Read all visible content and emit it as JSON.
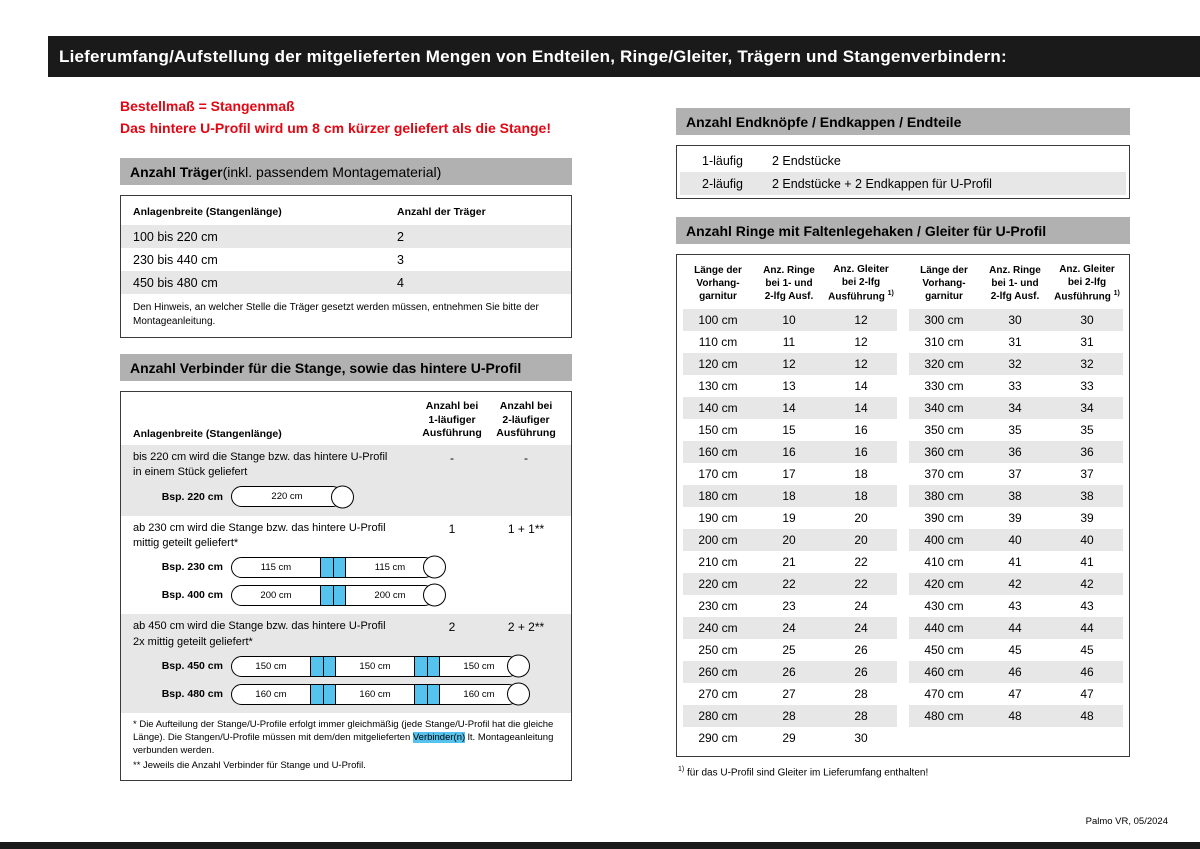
{
  "colors": {
    "bar_black": "#1a1a1a",
    "header_gray": "#b1b1b1",
    "row_gray": "#e7e7e7",
    "accent_red": "#e30613",
    "highlight_blue": "#55c3ee"
  },
  "page": {
    "title_bar": "Lieferumfang/Aufstellung der mitgelieferten Mengen von Endteilen, Ringe/Gleiter, Trägern und Stangenverbindern:",
    "footer": "Palmo VR, 05/2024"
  },
  "left": {
    "notice_line1": "Bestellmaß = Stangenmaß",
    "notice_line2": "Das hintere U-Profil wird um 8 cm kürzer geliefert als die Stange!",
    "traeger": {
      "header_bold": "Anzahl Träger",
      "header_rest": " (inkl. passendem Montagematerial)",
      "col1": "Anlagenbreite (Stangenlänge)",
      "col2": "Anzahl der Träger",
      "rows": [
        {
          "range": "100 bis 220 cm",
          "count": "2"
        },
        {
          "range": "230 bis 440 cm",
          "count": "3"
        },
        {
          "range": "450 bis 480 cm",
          "count": "4"
        }
      ],
      "note": "Den Hinweis, an welcher Stelle die Träger gesetzt werden müssen, entnehmen Sie bitte der Montageanleitung."
    },
    "verbinder": {
      "header": "Anzahl Verbinder für die Stange, sowie das hintere U-Profil",
      "col_label": "Anlagenbreite (Stangenlänge)",
      "col1": "Anzahl bei\n1-läufiger\nAusführung",
      "col2": "Anzahl bei\n2-läufiger\nAusführung",
      "blocks": [
        {
          "text": "bis 220 cm wird die Stange bzw. das hintere U-Profil\nin einem Stück geliefert",
          "val1": "-",
          "val2": "-",
          "examples": [
            {
              "label": "Bsp. 220 cm",
              "segments": [
                "220 cm"
              ]
            }
          ]
        },
        {
          "text": "ab 230 cm wird die Stange bzw. das hintere U-Profil\nmittig geteilt geliefert*",
          "val1": "1",
          "val2": "1 + 1**",
          "examples": [
            {
              "label": "Bsp. 230 cm",
              "segments": [
                "115 cm",
                "115 cm"
              ]
            },
            {
              "label": "Bsp. 400 cm",
              "segments": [
                "200 cm",
                "200 cm"
              ]
            }
          ]
        },
        {
          "text": "ab 450 cm wird die Stange bzw. das hintere U-Profil\n2x mittig geteilt geliefert*",
          "val1": "2",
          "val2": "2 + 2**",
          "examples": [
            {
              "label": "Bsp. 450 cm",
              "segments": [
                "150 cm",
                "150 cm",
                "150 cm"
              ]
            },
            {
              "label": "Bsp. 480 cm",
              "segments": [
                "160 cm",
                "160 cm",
                "160 cm"
              ]
            }
          ]
        }
      ],
      "footnote1_pre": "* Die Aufteilung der Stange/U-Profile erfolgt immer gleichmäßig (jede Stange/U-Profil hat die gleiche Länge). Die Stangen/U-Profile müssen mit dem/den mitgelieferten ",
      "footnote1_hl": "Verbinder(n)",
      "footnote1_post": " lt. Montageanleitung verbunden werden.",
      "footnote2": "** Jeweils die Anzahl Verbinder für Stange und U-Profil."
    }
  },
  "right": {
    "endteile": {
      "header": "Anzahl Endknöpfe / Endkappen / Endteile",
      "rows": [
        {
          "type": "1-läufig",
          "desc": "2 Endstücke"
        },
        {
          "type": "2-läufig",
          "desc": "2 Endstücke + 2 Endkappen für U-Profil"
        }
      ]
    },
    "ringe": {
      "header": "Anzahl Ringe mit Faltenlegehaken / Gleiter für U-Profil",
      "col_length": "Länge der\nVorhang-\ngarnitur",
      "col_ringe": "Anz. Ringe\nbei 1- und\n2-lfg Ausf.",
      "col_gleiter": "Anz. Gleiter\nbei 2-lfg\nAusführung ",
      "col_gleiter_sup": "1)",
      "table_left": [
        {
          "len": "100 cm",
          "ringe": "10",
          "gleiter": "12"
        },
        {
          "len": "110 cm",
          "ringe": "11",
          "gleiter": "12"
        },
        {
          "len": "120 cm",
          "ringe": "12",
          "gleiter": "12"
        },
        {
          "len": "130 cm",
          "ringe": "13",
          "gleiter": "14"
        },
        {
          "len": "140 cm",
          "ringe": "14",
          "gleiter": "14"
        },
        {
          "len": "150 cm",
          "ringe": "15",
          "gleiter": "16"
        },
        {
          "len": "160 cm",
          "ringe": "16",
          "gleiter": "16"
        },
        {
          "len": "170 cm",
          "ringe": "17",
          "gleiter": "18"
        },
        {
          "len": "180 cm",
          "ringe": "18",
          "gleiter": "18"
        },
        {
          "len": "190 cm",
          "ringe": "19",
          "gleiter": "20"
        },
        {
          "len": "200 cm",
          "ringe": "20",
          "gleiter": "20"
        },
        {
          "len": "210 cm",
          "ringe": "21",
          "gleiter": "22"
        },
        {
          "len": "220 cm",
          "ringe": "22",
          "gleiter": "22"
        },
        {
          "len": "230 cm",
          "ringe": "23",
          "gleiter": "24"
        },
        {
          "len": "240 cm",
          "ringe": "24",
          "gleiter": "24"
        },
        {
          "len": "250 cm",
          "ringe": "25",
          "gleiter": "26"
        },
        {
          "len": "260 cm",
          "ringe": "26",
          "gleiter": "26"
        },
        {
          "len": "270 cm",
          "ringe": "27",
          "gleiter": "28"
        },
        {
          "len": "280 cm",
          "ringe": "28",
          "gleiter": "28"
        },
        {
          "len": "290 cm",
          "ringe": "29",
          "gleiter": "30"
        }
      ],
      "table_right": [
        {
          "len": "300 cm",
          "ringe": "30",
          "gleiter": "30"
        },
        {
          "len": "310 cm",
          "ringe": "31",
          "gleiter": "31"
        },
        {
          "len": "320 cm",
          "ringe": "32",
          "gleiter": "32"
        },
        {
          "len": "330 cm",
          "ringe": "33",
          "gleiter": "33"
        },
        {
          "len": "340 cm",
          "ringe": "34",
          "gleiter": "34"
        },
        {
          "len": "350 cm",
          "ringe": "35",
          "gleiter": "35"
        },
        {
          "len": "360 cm",
          "ringe": "36",
          "gleiter": "36"
        },
        {
          "len": "370 cm",
          "ringe": "37",
          "gleiter": "37"
        },
        {
          "len": "380 cm",
          "ringe": "38",
          "gleiter": "38"
        },
        {
          "len": "390 cm",
          "ringe": "39",
          "gleiter": "39"
        },
        {
          "len": "400 cm",
          "ringe": "40",
          "gleiter": "40"
        },
        {
          "len": "410 cm",
          "ringe": "41",
          "gleiter": "41"
        },
        {
          "len": "420 cm",
          "ringe": "42",
          "gleiter": "42"
        },
        {
          "len": "430 cm",
          "ringe": "43",
          "gleiter": "43"
        },
        {
          "len": "440 cm",
          "ringe": "44",
          "gleiter": "44"
        },
        {
          "len": "450 cm",
          "ringe": "45",
          "gleiter": "45"
        },
        {
          "len": "460 cm",
          "ringe": "46",
          "gleiter": "46"
        },
        {
          "len": "470 cm",
          "ringe": "47",
          "gleiter": "47"
        },
        {
          "len": "480 cm",
          "ringe": "48",
          "gleiter": "48"
        }
      ],
      "footnote_sup": "1)",
      "footnote_text": " für das U-Profil sind Gleiter im Lieferumfang enthalten!"
    }
  }
}
